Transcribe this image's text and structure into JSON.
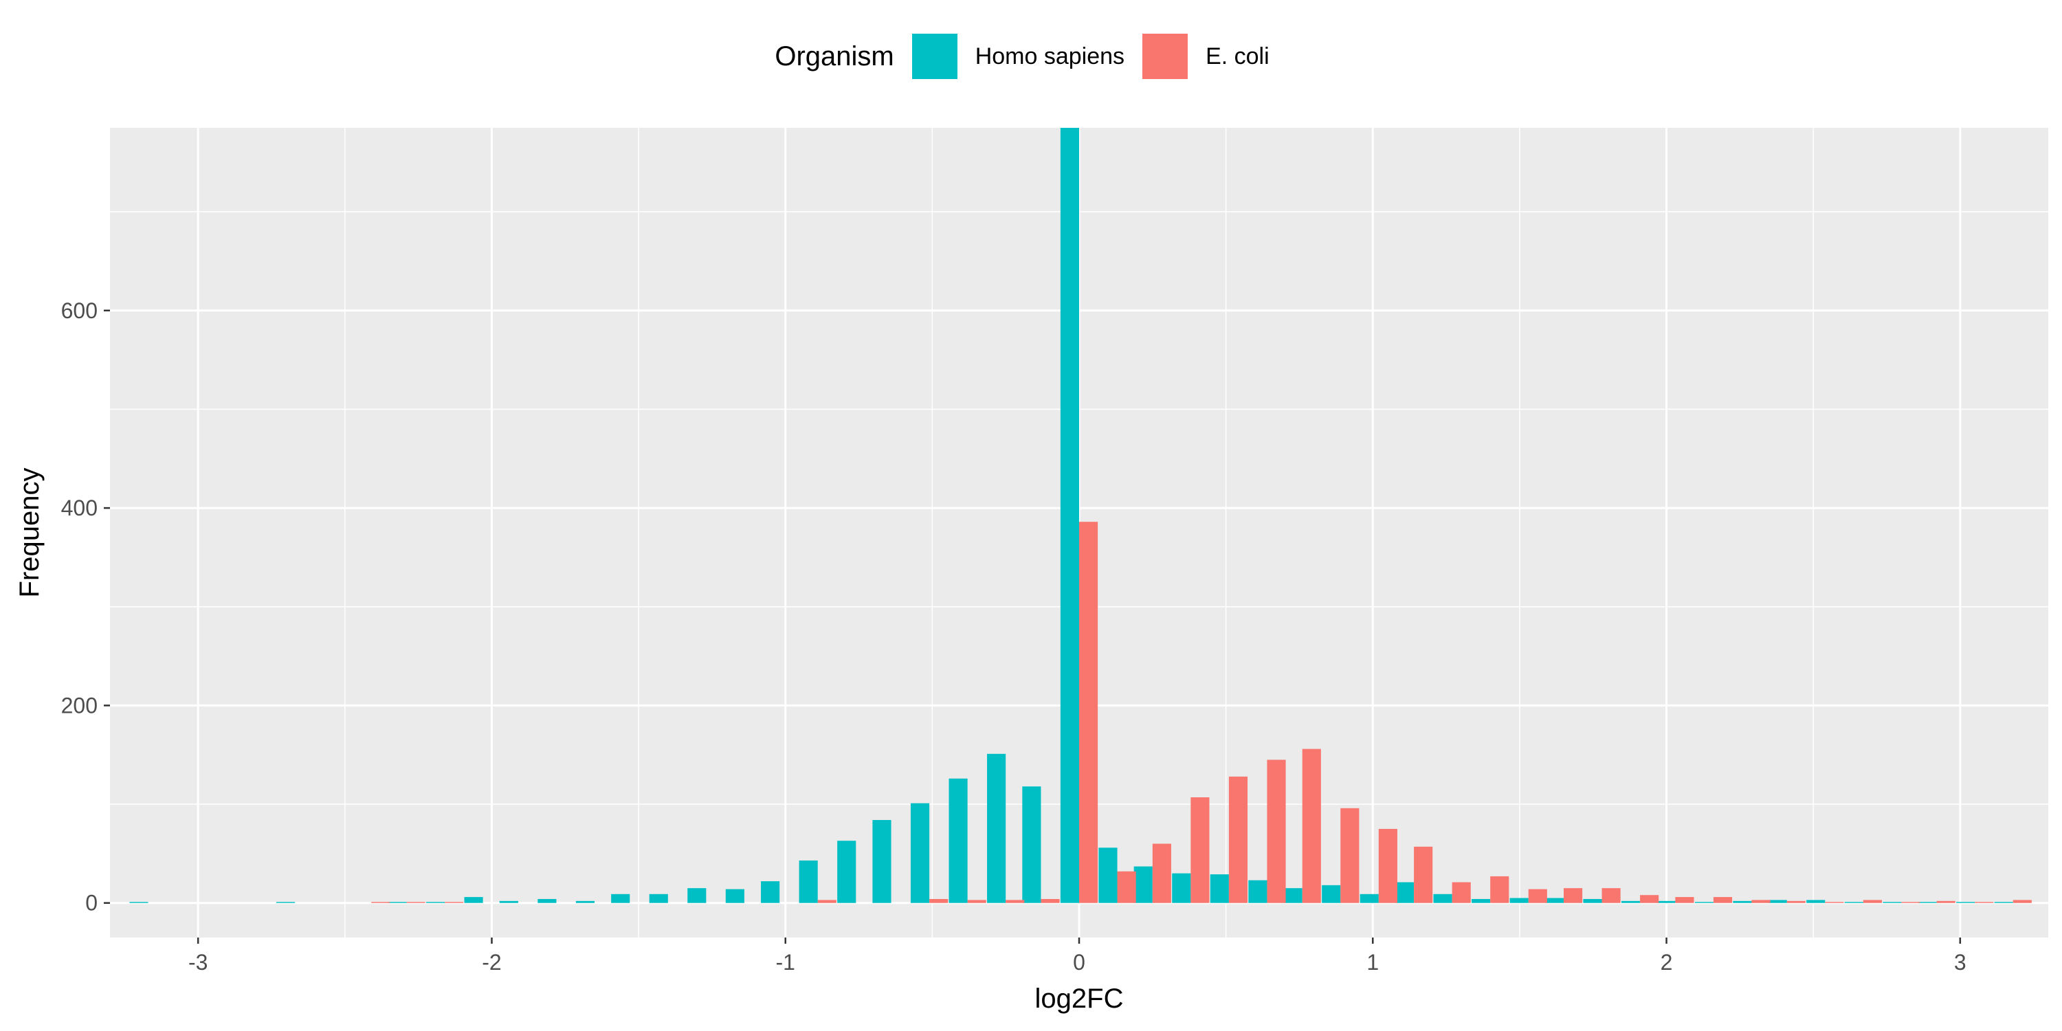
{
  "chart_data": {
    "type": "bar",
    "title": "",
    "xlabel": "log2FC",
    "ylabel": "Frequency",
    "xlim": [
      -3.3,
      3.3
    ],
    "ylim": [
      -35,
      785
    ],
    "xticks": [
      -3,
      -2,
      -1,
      0,
      1,
      2,
      3
    ],
    "yticks": [
      0,
      200,
      400,
      600
    ],
    "grid": true,
    "bin_width": 0.127,
    "legend": {
      "title": "Organism",
      "placement": "top"
    },
    "series": [
      {
        "name": "Homo sapiens",
        "color": "#00BFC4",
        "x": [
          -3.17,
          -2.67,
          -2.29,
          -2.16,
          -2.03,
          -1.91,
          -1.78,
          -1.65,
          -1.53,
          -1.4,
          -1.27,
          -1.14,
          -1.02,
          -0.89,
          -0.76,
          -0.64,
          -0.51,
          -0.38,
          -0.25,
          -0.13,
          0.0,
          0.13,
          0.25,
          0.38,
          0.51,
          0.64,
          0.76,
          0.89,
          1.02,
          1.14,
          1.27,
          1.4,
          1.53,
          1.65,
          1.78,
          1.91,
          2.03,
          2.16,
          2.29,
          2.41,
          2.54,
          2.67,
          2.8,
          2.92,
          3.05,
          3.18
        ],
        "y": [
          1,
          1,
          1,
          1,
          6,
          2,
          4,
          2,
          9,
          9,
          15,
          14,
          22,
          43,
          63,
          84,
          101,
          126,
          151,
          118,
          785,
          56,
          37,
          30,
          29,
          23,
          15,
          18,
          9,
          21,
          9,
          4,
          5,
          5,
          4,
          2,
          2,
          1,
          2,
          3,
          3,
          1,
          1,
          1,
          1,
          1
        ]
      },
      {
        "name": "E. coli",
        "color": "#F8766D",
        "x": [
          -2.41,
          -2.29,
          -2.16,
          -0.89,
          -0.51,
          -0.38,
          -0.25,
          -0.13,
          0.0,
          0.13,
          0.25,
          0.38,
          0.51,
          0.64,
          0.76,
          0.89,
          1.02,
          1.14,
          1.27,
          1.4,
          1.53,
          1.65,
          1.78,
          1.91,
          2.03,
          2.16,
          2.29,
          2.41,
          2.54,
          2.67,
          2.8,
          2.92,
          3.05,
          3.18
        ],
        "y": [
          1,
          1,
          1,
          3,
          4,
          3,
          3,
          4,
          386,
          32,
          60,
          107,
          128,
          145,
          156,
          96,
          75,
          57,
          21,
          27,
          14,
          15,
          15,
          8,
          6,
          6,
          3,
          2,
          1,
          3,
          1,
          2,
          1,
          3
        ]
      }
    ]
  }
}
